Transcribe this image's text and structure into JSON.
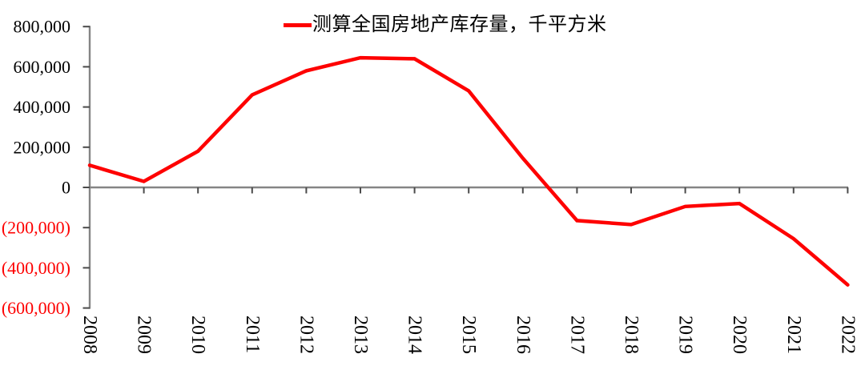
{
  "chart_data": {
    "type": "line",
    "title": "",
    "xlabel": "",
    "ylabel": "",
    "legend_position": "top",
    "grid": false,
    "categories": [
      "2008",
      "2009",
      "2010",
      "2011",
      "2012",
      "2013",
      "2014",
      "2015",
      "2016",
      "2017",
      "2018",
      "2019",
      "2020",
      "2021",
      "2022"
    ],
    "series": [
      {
        "name": "测算全国房地产库存量，千平方米",
        "color": "#fe0000",
        "values": [
          110000,
          30000,
          180000,
          460000,
          580000,
          645000,
          640000,
          480000,
          145000,
          -165000,
          -185000,
          -95000,
          -80000,
          -255000,
          -485000
        ]
      }
    ],
    "ylim": [
      -600000,
      800000
    ],
    "ytick_step": 200000,
    "yticks": [
      {
        "value": 800000,
        "label": "800,000",
        "color": "#000000"
      },
      {
        "value": 600000,
        "label": "600,000",
        "color": "#000000"
      },
      {
        "value": 400000,
        "label": "400,000",
        "color": "#000000"
      },
      {
        "value": 200000,
        "label": "200,000",
        "color": "#000000"
      },
      {
        "value": 0,
        "label": "0",
        "color": "#000000"
      },
      {
        "value": -200000,
        "label": "(200,000)",
        "color": "#fe0000"
      },
      {
        "value": -400000,
        "label": "(400,000)",
        "color": "#fe0000"
      },
      {
        "value": -600000,
        "label": "(600,000)",
        "color": "#fe0000"
      }
    ],
    "xtick_rotation_deg": 90,
    "colors": {
      "axis_line": "#858585",
      "tick_mark": "#4a4a4a",
      "xtick_label": "#000000",
      "series_line": "#fe0000"
    }
  }
}
